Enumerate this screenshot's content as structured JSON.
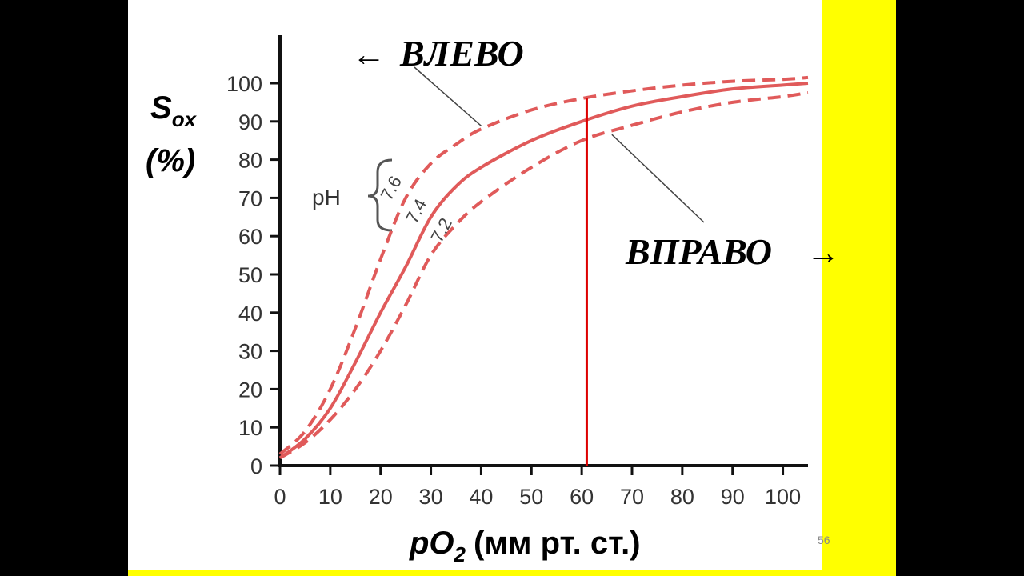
{
  "slide": {
    "page_number": "56"
  },
  "chart_data": {
    "type": "line",
    "title": "",
    "ylabel": {
      "symbol": "S",
      "subscript": "ox",
      "unit": "(%)"
    },
    "xlabel": {
      "symbol": "pO",
      "subscript": "2",
      "unit": "(мм рт. ст.)"
    },
    "xlim": [
      0,
      105
    ],
    "ylim": [
      0,
      100
    ],
    "x_ticks": [
      0,
      10,
      20,
      30,
      40,
      50,
      60,
      70,
      80,
      90,
      100
    ],
    "y_ticks": [
      0,
      10,
      20,
      30,
      40,
      50,
      60,
      70,
      80,
      90,
      100
    ],
    "grid": false,
    "colors": {
      "curve": "#e05a5a",
      "marker": "#dd0000"
    },
    "series_group_label": "pH",
    "series": [
      {
        "name": "7.6",
        "style": "dashed",
        "x": [
          0,
          5,
          10,
          15,
          20,
          25,
          30,
          35,
          40,
          50,
          60,
          70,
          80,
          90,
          100,
          105
        ],
        "y": [
          3,
          9,
          20,
          36,
          54,
          70,
          79,
          84,
          88,
          93,
          96,
          98,
          99.5,
          100.5,
          101,
          101.5
        ]
      },
      {
        "name": "7.4",
        "style": "solid",
        "x": [
          0,
          5,
          10,
          15,
          20,
          25,
          30,
          35,
          40,
          50,
          60,
          70,
          80,
          90,
          100,
          105
        ],
        "y": [
          2,
          7,
          15,
          27,
          40,
          52,
          65,
          73,
          78,
          85,
          90,
          94,
          96.5,
          98.5,
          99.5,
          100
        ]
      },
      {
        "name": "7.2",
        "style": "dashed",
        "x": [
          0,
          5,
          10,
          15,
          20,
          25,
          30,
          35,
          40,
          50,
          60,
          70,
          80,
          90,
          100,
          105
        ],
        "y": [
          2,
          6,
          12,
          20,
          30,
          42,
          55,
          63,
          69,
          78,
          85,
          89,
          92.5,
          95,
          96.5,
          97.5
        ]
      }
    ],
    "vertical_marker": {
      "x": 61
    },
    "annotations": [
      {
        "text": "ВЛЕВО",
        "arrow": "←",
        "arrow_side": "left",
        "points_to": "7.6"
      },
      {
        "text": "ВПРАВО",
        "arrow": "→",
        "arrow_side": "right",
        "points_to": "7.2"
      }
    ]
  }
}
